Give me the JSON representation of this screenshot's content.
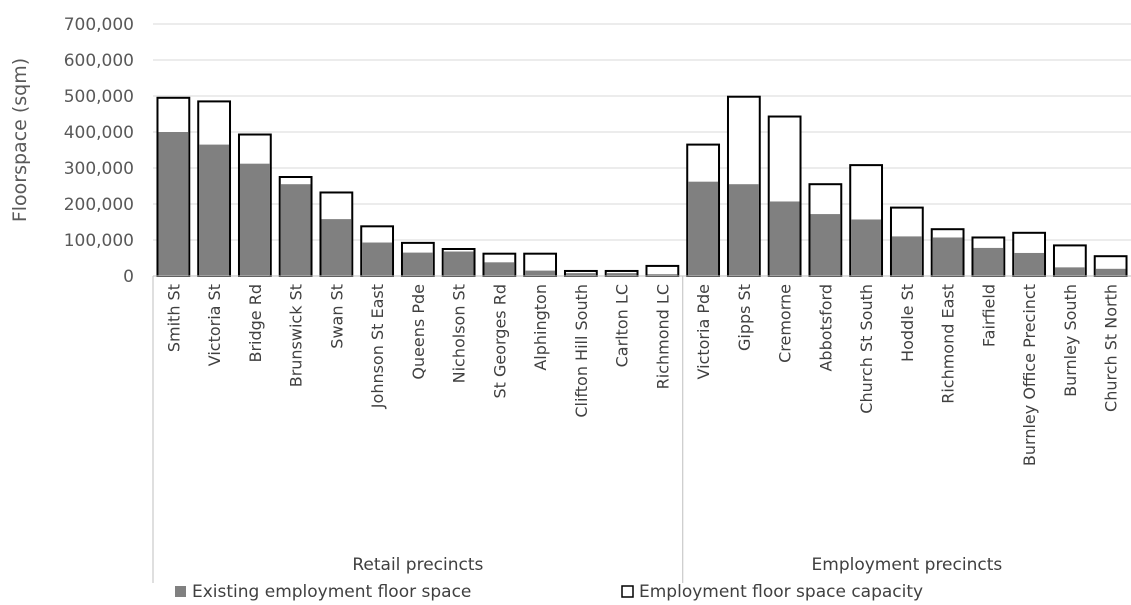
{
  "chart_data": {
    "type": "bar",
    "ylabel": "Floorspace (sqm)",
    "xlabel": "",
    "ylim": [
      0,
      700000
    ],
    "yticks": [
      "0",
      "100,000",
      "200,000",
      "300,000",
      "400,000",
      "500,000",
      "600,000",
      "700,000"
    ],
    "grid": true,
    "legend_position": "bottom",
    "groups": [
      {
        "label": "Retail precincts",
        "categories": [
          "Smith St",
          "Victoria St",
          "Bridge Rd",
          "Brunswick St",
          "Swan St",
          "Johnson St East",
          "Queens Pde",
          "Nicholson St",
          "St Georges Rd",
          "Alphington",
          "Clifton Hill South",
          "Carlton LC",
          "Richmond LC"
        ]
      },
      {
        "label": "Employment precincts",
        "categories": [
          "Victoria Pde",
          "Gipps St",
          "Cremorne",
          "Abbotsford",
          "Church St South",
          "Hoddle St",
          "Richmond East",
          "Fairfield",
          "Burnley Office Precinct",
          "Burnley South",
          "Church St North"
        ]
      }
    ],
    "categories": [
      "Smith St",
      "Victoria St",
      "Bridge Rd",
      "Brunswick St",
      "Swan St",
      "Johnson St East",
      "Queens Pde",
      "Nicholson St",
      "St Georges Rd",
      "Alphington",
      "Clifton Hill South",
      "Carlton LC",
      "Richmond LC",
      "Victoria Pde",
      "Gipps St",
      "Cremorne",
      "Abbotsford",
      "Church St South",
      "Hoddle St",
      "Richmond East",
      "Fairfield",
      "Burnley Office Precinct",
      "Burnley South",
      "Church St North"
    ],
    "series": [
      {
        "name": "Employment floor space capacity",
        "color": "#ffffff",
        "stroke": "#000000",
        "values": [
          495000,
          485000,
          393000,
          275000,
          232000,
          138000,
          92000,
          75000,
          62000,
          62000,
          14000,
          14000,
          28000,
          365000,
          498000,
          443000,
          255000,
          308000,
          190000,
          130000,
          107000,
          120000,
          85000,
          55000
        ]
      },
      {
        "name": "Existing employment floor space",
        "color": "#808080",
        "values": [
          400000,
          365000,
          312000,
          255000,
          158000,
          93000,
          65000,
          68000,
          38000,
          15000,
          8000,
          8000,
          5000,
          262000,
          255000,
          207000,
          172000,
          157000,
          110000,
          107000,
          78000,
          64000,
          24000,
          20000
        ]
      }
    ],
    "legend": [
      {
        "label": "Existing employment floor space",
        "swatch": "filled",
        "color": "#808080"
      },
      {
        "label": "Employment floor space capacity",
        "swatch": "outline",
        "color": "#000000"
      }
    ]
  }
}
